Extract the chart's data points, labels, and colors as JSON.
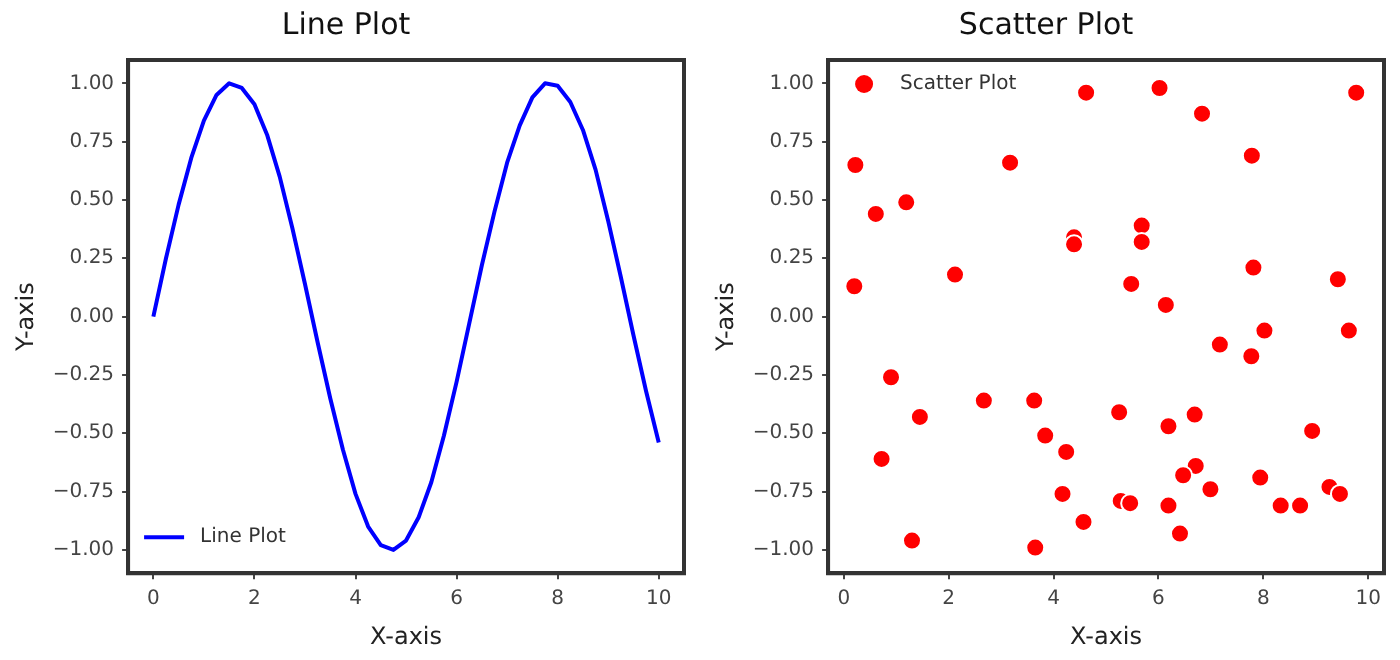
{
  "chart_data": [
    {
      "type": "line",
      "title": "Line Plot",
      "xlabel": "X-axis",
      "ylabel": "Y-axis",
      "legend": "bottom left",
      "grid": false,
      "marker": "none",
      "line_style": "solid",
      "xlim": [
        -0.5,
        10.5
      ],
      "xticks": [
        0,
        2,
        4,
        6,
        8,
        10
      ],
      "ylim": [
        -1.1,
        1.1
      ],
      "yticks": [
        {
          "value": -1,
          "label": "−1.00"
        },
        {
          "value": -0.75,
          "label": "−0.75"
        },
        {
          "value": -0.5,
          "label": "−0.50"
        },
        {
          "value": -0.25,
          "label": "−0.25"
        },
        {
          "value": 0,
          "label": "0.00"
        },
        {
          "value": 0.25,
          "label": "0.25"
        },
        {
          "value": 0.5,
          "label": "0.50"
        },
        {
          "value": 0.75,
          "label": "0.75"
        },
        {
          "value": 1,
          "label": "1.00"
        }
      ],
      "x": [
        0,
        0.25,
        0.5,
        0.75,
        1,
        1.25,
        1.5,
        1.75,
        2,
        2.25,
        2.5,
        2.75,
        3,
        3.25,
        3.5,
        3.75,
        4,
        4.25,
        4.5,
        4.75,
        5,
        5.25,
        5.5,
        5.75,
        6,
        6.25,
        6.5,
        6.75,
        7,
        7.25,
        7.5,
        7.75,
        8,
        8.25,
        8.5,
        8.75,
        9,
        9.25,
        9.5,
        9.75,
        10
      ],
      "series": [
        {
          "name": "Line Plot",
          "color": "#0000ff",
          "values": [
            0,
            0.25,
            0.48,
            0.68,
            0.84,
            0.95,
            1.0,
            0.98,
            0.91,
            0.78,
            0.6,
            0.38,
            0.14,
            -0.11,
            -0.35,
            -0.57,
            -0.76,
            -0.9,
            -0.98,
            -1.0,
            -0.96,
            -0.86,
            -0.71,
            -0.51,
            -0.28,
            -0.03,
            0.22,
            0.45,
            0.66,
            0.82,
            0.94,
            1.0,
            0.99,
            0.92,
            0.8,
            0.63,
            0.41,
            0.17,
            -0.08,
            -0.32,
            -0.54
          ]
        }
      ]
    },
    {
      "type": "scatter",
      "title": "Scatter Plot",
      "xlabel": "X-axis",
      "ylabel": "Y-axis",
      "legend": "top left",
      "grid": false,
      "marker": "circle",
      "xlim": [
        -0.3,
        10.3
      ],
      "xticks": [
        0,
        2,
        4,
        6,
        8,
        10
      ],
      "ylim": [
        -1.1,
        1.1
      ],
      "yticks": [
        {
          "value": -1,
          "label": "−1.00"
        },
        {
          "value": -0.75,
          "label": "−0.75"
        },
        {
          "value": -0.5,
          "label": "−0.50"
        },
        {
          "value": -0.25,
          "label": "−0.25"
        },
        {
          "value": 0,
          "label": "0.00"
        },
        {
          "value": 0.25,
          "label": "0.25"
        },
        {
          "value": 0.5,
          "label": "0.50"
        },
        {
          "value": 0.75,
          "label": "0.75"
        },
        {
          "value": 1,
          "label": "1.00"
        }
      ],
      "x": [
        0.22,
        4.62,
        6.02,
        9.77,
        6.83,
        7.78,
        3.17,
        0.61,
        1.19,
        4.39,
        4.39,
        5.68,
        5.68,
        0.2,
        2.12,
        5.48,
        7.81,
        9.42,
        6.14,
        7.17,
        8.02,
        9.63,
        7.77,
        0.9,
        2.67,
        3.63,
        1.45,
        5.25,
        6.19,
        6.69,
        3.84,
        4.24,
        8.93,
        0.72,
        6.71,
        6.47,
        7.94,
        6.99,
        9.26,
        9.46,
        4.17,
        5.28,
        5.46,
        6.19,
        8.33,
        8.7,
        4.57,
        6.41,
        1.3,
        3.65
      ],
      "series": [
        {
          "name": "Scatter Plot",
          "color": "#ff0000",
          "values": [
            0.65,
            0.96,
            0.98,
            0.96,
            0.87,
            0.69,
            0.66,
            0.44,
            0.49,
            0.34,
            0.31,
            0.39,
            0.32,
            0.13,
            0.18,
            0.14,
            0.21,
            0.16,
            0.05,
            -0.12,
            -0.06,
            -0.06,
            -0.17,
            -0.26,
            -0.36,
            -0.36,
            -0.43,
            -0.41,
            -0.47,
            -0.42,
            -0.51,
            -0.58,
            -0.49,
            -0.61,
            -0.64,
            -0.68,
            -0.69,
            -0.74,
            -0.73,
            -0.76,
            -0.76,
            -0.79,
            -0.8,
            -0.81,
            -0.81,
            -0.81,
            -0.88,
            -0.93,
            -0.96,
            -0.99
          ]
        }
      ]
    }
  ]
}
